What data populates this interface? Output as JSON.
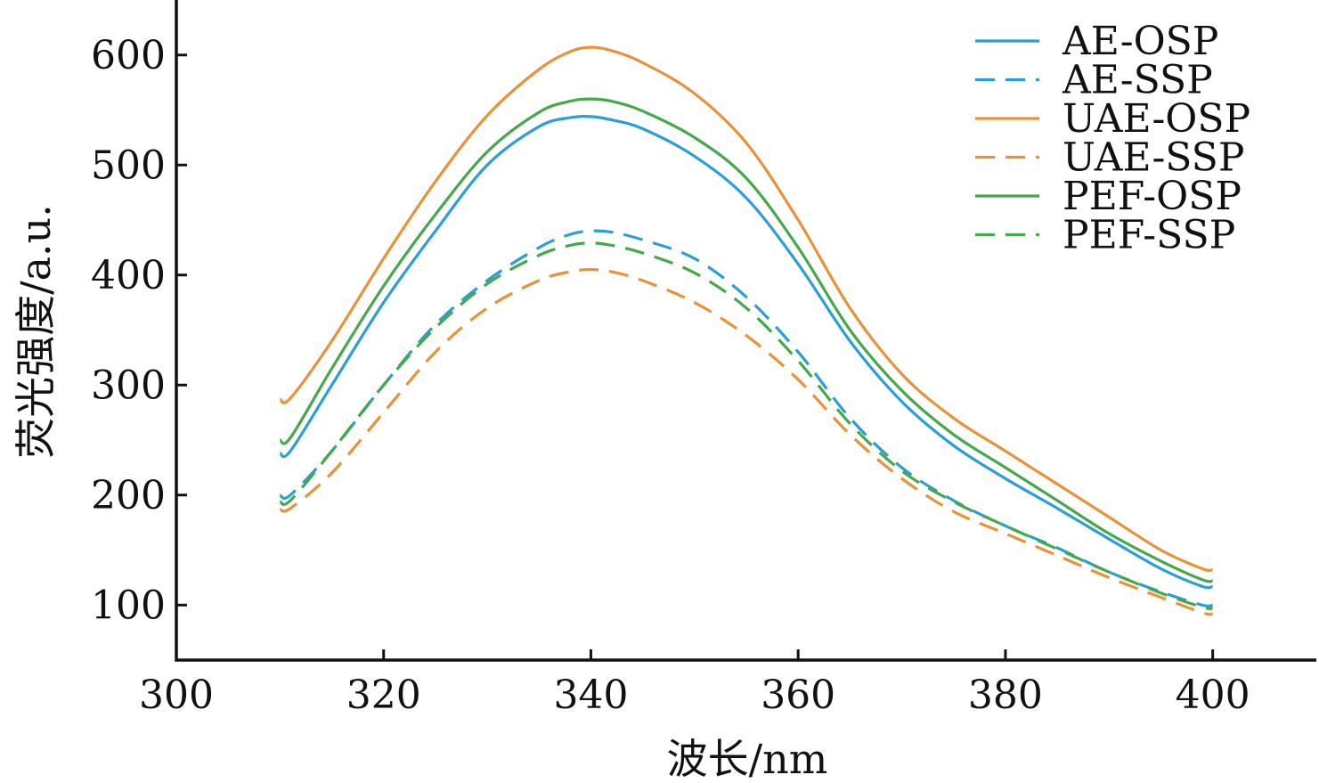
{
  "chart_data": {
    "type": "line",
    "title": "",
    "xlabel": "波长/nm",
    "ylabel": "荧光强度/a.u.",
    "xlim": [
      300,
      410
    ],
    "ylim": [
      50,
      650
    ],
    "xticks": [
      300,
      320,
      340,
      360,
      380,
      400
    ],
    "yticks": [
      100,
      200,
      300,
      400,
      500,
      600
    ],
    "grid": false,
    "legend_position": "top-right",
    "colors": {
      "blue": "#2a9fd6",
      "orange": "#e8923a",
      "green": "#45a84a"
    },
    "x": [
      310,
      311,
      315,
      320,
      325,
      330,
      335,
      338,
      340,
      342,
      345,
      350,
      355,
      360,
      365,
      370,
      375,
      380,
      385,
      390,
      395,
      399,
      400
    ],
    "series": [
      {
        "name": "AE-OSP",
        "color": "#2a9fd6",
        "dash": "solid",
        "values": [
          238,
          240,
          300,
          375,
          440,
          500,
          535,
          543,
          544,
          541,
          533,
          508,
          470,
          410,
          340,
          285,
          245,
          215,
          188,
          160,
          133,
          117,
          117
        ]
      },
      {
        "name": "AE-SSP",
        "color": "#2a9fd6",
        "dash": "dashed",
        "values": [
          200,
          200,
          240,
          300,
          355,
          395,
          425,
          437,
          440,
          439,
          432,
          415,
          380,
          330,
          270,
          225,
          195,
          172,
          152,
          130,
          112,
          100,
          100
        ]
      },
      {
        "name": "UAE-OSP",
        "color": "#e8923a",
        "dash": "solid",
        "values": [
          287,
          288,
          340,
          415,
          485,
          545,
          587,
          603,
          607,
          604,
          593,
          565,
          520,
          450,
          370,
          310,
          270,
          240,
          210,
          180,
          150,
          133,
          132
        ]
      },
      {
        "name": "UAE-SSP",
        "color": "#e8923a",
        "dash": "dashed",
        "values": [
          187,
          188,
          220,
          275,
          330,
          370,
          395,
          403,
          405,
          403,
          395,
          375,
          345,
          305,
          255,
          215,
          185,
          165,
          145,
          125,
          107,
          93,
          92
        ]
      },
      {
        "name": "PEF-OSP",
        "color": "#45a84a",
        "dash": "solid",
        "values": [
          250,
          252,
          315,
          390,
          455,
          512,
          548,
          558,
          560,
          558,
          549,
          525,
          488,
          425,
          350,
          295,
          255,
          225,
          195,
          165,
          140,
          123,
          122
        ]
      },
      {
        "name": "PEF-SSP",
        "color": "#45a84a",
        "dash": "dashed",
        "values": [
          194,
          195,
          240,
          300,
          352,
          392,
          418,
          427,
          429,
          427,
          420,
          402,
          370,
          322,
          265,
          222,
          194,
          172,
          151,
          130,
          111,
          98,
          97
        ]
      }
    ]
  }
}
